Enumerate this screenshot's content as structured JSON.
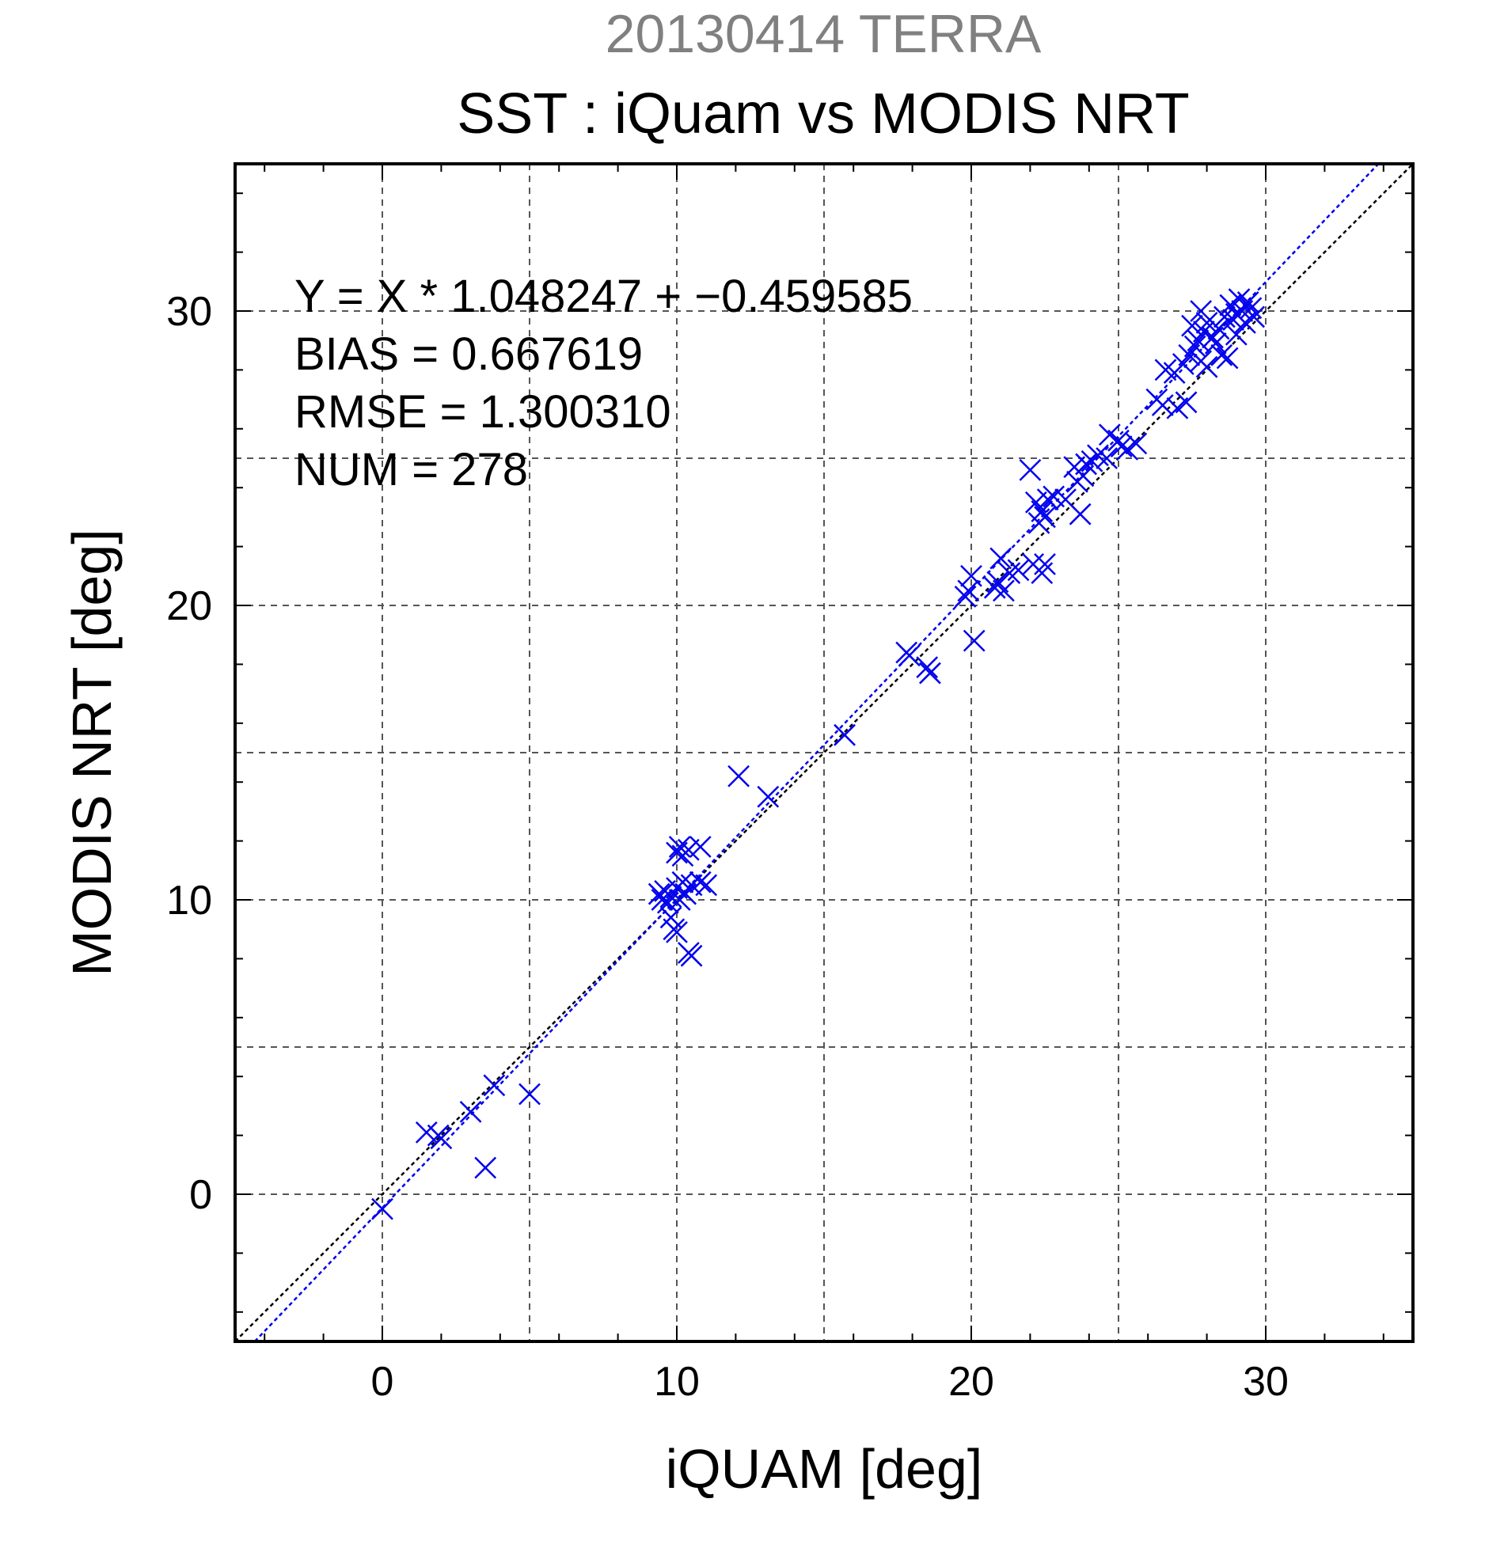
{
  "titles": {
    "line1": "20130414 TERRA",
    "line2": "SST : iQuam vs MODIS NRT"
  },
  "annotations": {
    "equation": "Y = X * 1.048247 + −0.459585",
    "bias": "BIAS = 0.667619",
    "rmse": "RMSE = 1.300310",
    "num": "NUM = 278"
  },
  "colors": {
    "markers": "#0000ee",
    "fit_line": "#0000ee",
    "one_to_one_line": "#000000",
    "date_title": "#808080"
  },
  "chart_data": {
    "type": "scatter",
    "xlabel": "iQUAM [deg]",
    "ylabel": "MODIS NRT [deg]",
    "xlim": [
      -5,
      35
    ],
    "ylim": [
      -5,
      35
    ],
    "major_ticks": [
      0,
      10,
      20,
      30
    ],
    "gridlines": [
      0,
      5,
      10,
      15,
      20,
      25,
      30
    ],
    "tick_labels": [
      "0",
      "10",
      "20",
      "30"
    ],
    "grid": true,
    "marker": "x",
    "fit": {
      "slope": 1.048247,
      "intercept": -0.459585
    },
    "reference_line": {
      "slope": 1,
      "intercept": 0
    },
    "points": [
      [
        0.0,
        -0.5
      ],
      [
        1.5,
        2.1
      ],
      [
        1.9,
        2.0
      ],
      [
        2.0,
        1.9
      ],
      [
        3.0,
        2.8
      ],
      [
        3.5,
        0.9
      ],
      [
        3.8,
        3.7
      ],
      [
        5.0,
        3.4
      ],
      [
        9.4,
        10.2
      ],
      [
        9.5,
        10.0
      ],
      [
        9.6,
        10.3
      ],
      [
        9.7,
        9.9
      ],
      [
        9.8,
        10.1
      ],
      [
        9.8,
        9.4
      ],
      [
        9.9,
        9.0
      ],
      [
        10.0,
        11.6
      ],
      [
        10.0,
        10.4
      ],
      [
        10.0,
        8.9
      ],
      [
        10.1,
        11.8
      ],
      [
        10.1,
        10.0
      ],
      [
        10.2,
        11.5
      ],
      [
        10.2,
        10.6
      ],
      [
        10.3,
        10.2
      ],
      [
        10.4,
        11.7
      ],
      [
        10.4,
        8.2
      ],
      [
        10.5,
        10.5
      ],
      [
        10.5,
        8.1
      ],
      [
        10.8,
        11.8
      ],
      [
        10.8,
        10.6
      ],
      [
        11.0,
        10.5
      ],
      [
        12.1,
        14.2
      ],
      [
        13.1,
        13.5
      ],
      [
        15.7,
        15.6
      ],
      [
        17.8,
        18.4
      ],
      [
        17.9,
        18.3
      ],
      [
        18.5,
        17.9
      ],
      [
        18.6,
        17.7
      ],
      [
        19.8,
        20.3
      ],
      [
        19.9,
        20.5
      ],
      [
        20.0,
        21.0
      ],
      [
        20.1,
        18.8
      ],
      [
        20.8,
        20.6
      ],
      [
        20.9,
        20.8
      ],
      [
        21.0,
        21.6
      ],
      [
        21.1,
        20.5
      ],
      [
        21.3,
        21.1
      ],
      [
        21.6,
        21.2
      ],
      [
        22.0,
        24.6
      ],
      [
        22.1,
        21.4
      ],
      [
        22.2,
        23.5
      ],
      [
        22.3,
        22.8
      ],
      [
        22.4,
        23.2
      ],
      [
        22.4,
        21.1
      ],
      [
        22.5,
        23.0
      ],
      [
        22.5,
        21.4
      ],
      [
        22.6,
        23.6
      ],
      [
        22.8,
        23.7
      ],
      [
        23.2,
        23.6
      ],
      [
        23.5,
        24.7
      ],
      [
        23.6,
        24.2
      ],
      [
        23.7,
        23.1
      ],
      [
        23.8,
        24.4
      ],
      [
        23.9,
        24.8
      ],
      [
        24.1,
        24.9
      ],
      [
        24.3,
        25.1
      ],
      [
        24.6,
        25.0
      ],
      [
        24.7,
        25.8
      ],
      [
        25.0,
        25.6
      ],
      [
        25.1,
        25.4
      ],
      [
        25.3,
        25.3
      ],
      [
        25.6,
        25.5
      ],
      [
        26.3,
        27.0
      ],
      [
        26.5,
        26.8
      ],
      [
        26.6,
        28.0
      ],
      [
        26.9,
        27.9
      ],
      [
        27.0,
        26.7
      ],
      [
        27.2,
        28.2
      ],
      [
        27.3,
        26.9
      ],
      [
        27.4,
        28.5
      ],
      [
        27.5,
        29.5
      ],
      [
        27.6,
        28.8
      ],
      [
        27.7,
        29.0
      ],
      [
        27.8,
        30.0
      ],
      [
        27.8,
        28.3
      ],
      [
        27.9,
        29.3
      ],
      [
        28.0,
        28.1
      ],
      [
        28.0,
        29.6
      ],
      [
        28.2,
        29.1
      ],
      [
        28.3,
        28.9
      ],
      [
        28.4,
        29.4
      ],
      [
        28.5,
        28.5
      ],
      [
        28.6,
        29.8
      ],
      [
        28.7,
        28.4
      ],
      [
        28.8,
        30.2
      ],
      [
        28.9,
        29.7
      ],
      [
        29.0,
        29.9
      ],
      [
        29.0,
        29.2
      ],
      [
        29.1,
        30.4
      ],
      [
        29.2,
        30.0
      ],
      [
        29.3,
        29.6
      ],
      [
        29.4,
        30.3
      ],
      [
        29.5,
        30.1
      ],
      [
        29.6,
        29.8
      ]
    ]
  }
}
